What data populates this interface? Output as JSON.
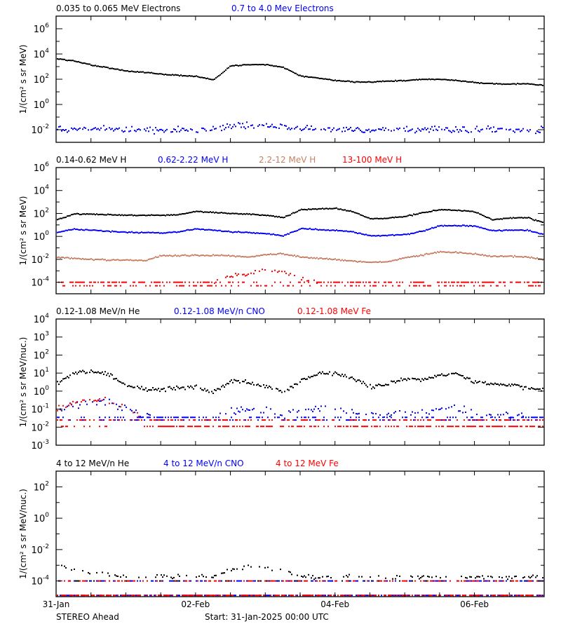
{
  "time_axis": {
    "xlim": [
      "2025-01-31T00:00",
      "2025-02-07T00:00"
    ],
    "tick_labels": [
      "31-Jan",
      "02-Feb",
      "04-Feb",
      "06-Feb"
    ],
    "sample_times": [
      "2025-01-31T00:00",
      "2025-01-31T06:00",
      "2025-01-31T12:00",
      "2025-01-31T18:00",
      "2025-02-01T00:00",
      "2025-02-01T06:00",
      "2025-02-01T12:00",
      "2025-02-01T18:00",
      "2025-02-02T00:00",
      "2025-02-02T06:00",
      "2025-02-02T12:00",
      "2025-02-02T18:00",
      "2025-02-03T00:00",
      "2025-02-03T06:00",
      "2025-02-03T12:00",
      "2025-02-03T18:00",
      "2025-02-04T00:00",
      "2025-02-04T06:00",
      "2025-02-04T12:00",
      "2025-02-04T18:00",
      "2025-02-05T00:00",
      "2025-02-05T06:00",
      "2025-02-05T12:00",
      "2025-02-05T18:00",
      "2025-02-06T00:00",
      "2025-02-06T06:00",
      "2025-02-06T12:00",
      "2025-02-06T18:00",
      "2025-02-07T00:00"
    ]
  },
  "footer": {
    "spacecraft": "STEREO Ahead",
    "start": "Start: 31-Jan-2025 00:00 UTC"
  },
  "chart_data": [
    {
      "type": "scatter",
      "yscale": "log",
      "ylim": [
        0.001,
        10000000
      ],
      "ylabel": "1/(cm² s sr MeV)",
      "yticks": [
        {
          "value": 0.01,
          "exp": "-2"
        },
        {
          "value": 1,
          "exp": "0"
        },
        {
          "value": 100,
          "exp": "2"
        },
        {
          "value": 10000,
          "exp": "4"
        },
        {
          "value": 1000000,
          "exp": "6"
        }
      ],
      "series": [
        {
          "name": "0.035 to 0.065 MeV Electrons",
          "color": "#000000",
          "floors": [],
          "values": [
            4700,
            3200,
            1500,
            870,
            520,
            400,
            280,
            230,
            190,
            100,
            1300,
            1600,
            1600,
            1000,
            200,
            140,
            90,
            70,
            68,
            80,
            90,
            110,
            110,
            90,
            63,
            50,
            47,
            50,
            36
          ]
        },
        {
          "name": "0.7 to 4.0 Mev Electrons",
          "color": "#0000ff",
          "floors": [],
          "values": [
            0.015,
            0.013,
            0.012,
            0.012,
            0.011,
            0.011,
            0.011,
            0.011,
            0.011,
            0.012,
            0.02,
            0.025,
            0.022,
            0.02,
            0.015,
            0.012,
            0.012,
            0.011,
            0.011,
            0.011,
            0.011,
            0.011,
            0.012,
            0.011,
            0.011,
            0.011,
            0.011,
            0.011,
            0.012
          ]
        }
      ]
    },
    {
      "type": "scatter",
      "yscale": "log",
      "ylim": [
        1e-05,
        1000000
      ],
      "ylabel": "1/(cm² s sr MeV)",
      "yticks": [
        {
          "value": 0.0001,
          "exp": "-4"
        },
        {
          "value": 0.01,
          "exp": "-2"
        },
        {
          "value": 1,
          "exp": "0"
        },
        {
          "value": 100,
          "exp": "2"
        },
        {
          "value": 10000,
          "exp": "4"
        },
        {
          "value": 1000000,
          "exp": "6"
        }
      ],
      "series": [
        {
          "name": "0.14-0.62 MeV H",
          "color": "#000000",
          "floors": [],
          "values": [
            32,
            100,
            100,
            89,
            79,
            79,
            79,
            89,
            170,
            140,
            115,
            100,
            79,
            50,
            240,
            280,
            320,
            160,
            40,
            45,
            63,
            130,
            250,
            220,
            160,
            32,
            45,
            50,
            16
          ]
        },
        {
          "name": "0.62-2.22 MeV H",
          "color": "#0000ff",
          "floors": [],
          "values": [
            2.6,
            4.7,
            4,
            3.2,
            2.6,
            2.5,
            2.3,
            2.8,
            5.4,
            4,
            2.8,
            2.5,
            2,
            1.3,
            5.4,
            4.5,
            4,
            2.8,
            1.26,
            1.4,
            1.7,
            3.2,
            10,
            10,
            9.3,
            3.5,
            4,
            4,
            1.6
          ]
        },
        {
          "name": "2.2-12 MeV H",
          "color": "#c87f64",
          "floors": [],
          "values": [
            0.017,
            0.014,
            0.011,
            0.01,
            0.01,
            0.0087,
            0.023,
            0.025,
            0.026,
            0.025,
            0.023,
            0.018,
            0.028,
            0.035,
            0.018,
            0.014,
            0.011,
            0.0079,
            0.0063,
            0.0071,
            0.016,
            0.028,
            0.054,
            0.045,
            0.032,
            0.02,
            0.022,
            0.018,
            0.011
          ]
        },
        {
          "name": "13-100 MeV H",
          "color": "#ff0000",
          "floors": [
            0.0001,
            5e-05
          ],
          "values": [
            0.00013,
            0.00013,
            0.00013,
            0.00013,
            0.00013,
            0.00013,
            0.00013,
            0.00013,
            0.00013,
            0.00013,
            0.0004,
            0.00063,
            0.0016,
            0.001,
            0.00025,
            0.00013,
            0.00013,
            0.00013,
            0.00013,
            0.00013,
            0.00013,
            0.00013,
            0.00013,
            0.00013,
            0.00013,
            0.00013,
            0.00013,
            0.00013,
            0.00013
          ]
        }
      ]
    },
    {
      "type": "scatter",
      "yscale": "log",
      "ylim": [
        0.001,
        10000
      ],
      "ylabel": "1/(cm² s sr MeV/nuc.)",
      "yticks": [
        {
          "value": 0.001,
          "exp": "-3"
        },
        {
          "value": 0.01,
          "exp": "-2"
        },
        {
          "value": 0.1,
          "exp": "-1"
        },
        {
          "value": 1,
          "exp": "0"
        },
        {
          "value": 10,
          "exp": "1"
        },
        {
          "value": 100,
          "exp": "2"
        },
        {
          "value": 1000,
          "exp": "3"
        },
        {
          "value": 10000,
          "exp": "4"
        }
      ],
      "series": [
        {
          "name": "0.12-1.08 MeV/n He",
          "color": "#000000",
          "floors": [],
          "values": [
            3,
            11,
            14,
            9,
            2.3,
            1.4,
            1.3,
            1.7,
            1.7,
            0.9,
            4,
            3.2,
            2,
            1.1,
            4,
            9,
            11,
            5.6,
            1.9,
            2.7,
            5.1,
            5,
            9,
            10,
            3.5,
            2.8,
            2.5,
            1.6,
            1.26
          ]
        },
        {
          "name": "0.12-1.08 MeV/n CNO",
          "color": "#0000ff",
          "floors": [
            0.035,
            0.025
          ],
          "values": [
            0.079,
            0.2,
            0.32,
            0.25,
            0.13,
            0.05,
            0.04,
            0.04,
            0.04,
            0.04,
            0.089,
            0.1,
            0.079,
            0.05,
            0.1,
            0.11,
            0.11,
            0.071,
            0.05,
            0.056,
            0.063,
            0.071,
            0.11,
            0.11,
            0.079,
            0.05,
            0.05,
            0.045,
            0.045
          ]
        },
        {
          "name": "0.12-1.08 MeV Fe",
          "color": "#ff0000",
          "floors": [
            0.011,
            0.025
          ],
          "values": [
            0.1,
            0.25,
            0.4,
            0.32,
            0.13,
            0.032,
            0.011,
            0.011,
            0.011,
            0.011,
            0.011,
            0.011,
            0.011,
            0.011,
            0.011,
            0.011,
            0.011,
            0.011,
            0.011,
            0.011,
            0.011,
            0.011,
            0.011,
            0.011,
            0.011,
            0.011,
            0.011,
            0.011,
            0.011
          ]
        }
      ]
    },
    {
      "type": "scatter",
      "yscale": "log",
      "ylim": [
        1e-05,
        1000
      ],
      "ylabel": "1/(cm² s sr MeV/nuc.)",
      "yticks": [
        {
          "value": 0.0001,
          "exp": "-4"
        },
        {
          "value": 0.01,
          "exp": "-2"
        },
        {
          "value": 1,
          "exp": "0"
        },
        {
          "value": 100,
          "exp": "2"
        }
      ],
      "series": [
        {
          "name": "4 to 12 MeV/n He",
          "color": "#000000",
          "floors": [
            0.0001
          ],
          "values": [
            0.0011,
            0.00063,
            0.0004,
            0.00032,
            0.00025,
            0.00022,
            0.00022,
            0.0002,
            0.0002,
            0.0002,
            0.00063,
            0.001,
            0.00079,
            0.0005,
            0.0002,
            0.0002,
            0.0002,
            0.0002,
            0.0002,
            0.0002,
            0.0002,
            0.0002,
            0.0002,
            0.0002,
            0.0002,
            0.0002,
            0.0002,
            0.0002,
            0.0002
          ]
        },
        {
          "name": "4 to 12 MeV/n CNO",
          "color": "#0000ff",
          "floors": [
            1.2e-05,
            0.0001
          ],
          "values": []
        },
        {
          "name": "4 to 12 MeV Fe",
          "color": "#ff0000",
          "floors": [
            1.2e-05,
            0.0001
          ],
          "values": []
        }
      ]
    }
  ]
}
